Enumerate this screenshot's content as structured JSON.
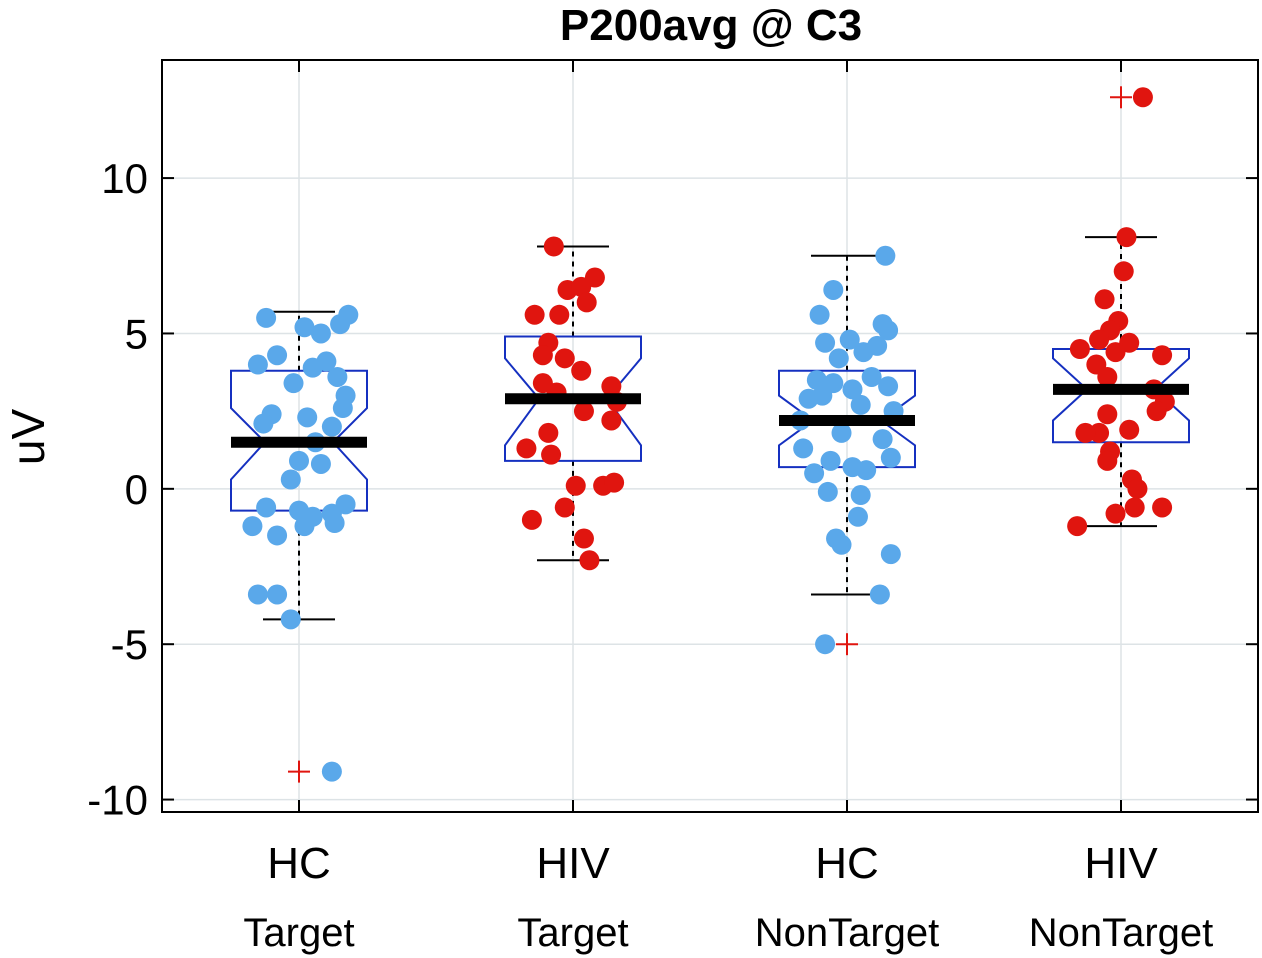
{
  "chart_data": {
    "type": "box",
    "title": "P200avg @ C3",
    "ylabel": "uV",
    "xlabel": "",
    "ylim": [
      -10.4,
      13.8
    ],
    "yticks": [
      -10,
      -5,
      0,
      5,
      10
    ],
    "ytick_labels": [
      "-10",
      "-5",
      "0",
      "5",
      "10"
    ],
    "grid": true,
    "notched": true,
    "colors": {
      "hc": "#5aa8ea",
      "hiv": "#e0150f",
      "box": "#1530c0",
      "median": "#000000",
      "outlier": "#e0150f",
      "grid": "#dde3e6"
    },
    "groups": [
      {
        "label": "HC",
        "sublabel": "Target",
        "color": "#5aa8ea",
        "q1": -0.7,
        "median": 1.5,
        "q3": 3.8,
        "notch": [
          0.3,
          2.6
        ],
        "whisker_low": -4.2,
        "whisker_high": 5.7,
        "outliers": [
          -9.1
        ],
        "points": [
          {
            "x": -0.12,
            "y": 5.5
          },
          {
            "x": 0.02,
            "y": 5.2
          },
          {
            "x": 0.08,
            "y": 5.0
          },
          {
            "x": 0.15,
            "y": 5.3
          },
          {
            "x": 0.18,
            "y": 5.6
          },
          {
            "x": -0.15,
            "y": 4.0
          },
          {
            "x": -0.08,
            "y": 4.3
          },
          {
            "x": 0.05,
            "y": 3.9
          },
          {
            "x": 0.1,
            "y": 4.1
          },
          {
            "x": 0.14,
            "y": 3.6
          },
          {
            "x": -0.02,
            "y": 3.4
          },
          {
            "x": 0.17,
            "y": 3.0
          },
          {
            "x": 0.16,
            "y": 2.6
          },
          {
            "x": -0.1,
            "y": 2.4
          },
          {
            "x": 0.03,
            "y": 2.3
          },
          {
            "x": -0.13,
            "y": 2.1
          },
          {
            "x": 0.12,
            "y": 2.0
          },
          {
            "x": 0.06,
            "y": 1.5
          },
          {
            "x": 0.0,
            "y": 0.9
          },
          {
            "x": 0.08,
            "y": 0.8
          },
          {
            "x": -0.03,
            "y": 0.3
          },
          {
            "x": -0.12,
            "y": -0.6
          },
          {
            "x": 0.0,
            "y": -0.7
          },
          {
            "x": 0.05,
            "y": -0.9
          },
          {
            "x": 0.12,
            "y": -0.8
          },
          {
            "x": 0.17,
            "y": -0.5
          },
          {
            "x": -0.17,
            "y": -1.2
          },
          {
            "x": -0.08,
            "y": -1.5
          },
          {
            "x": 0.02,
            "y": -1.2
          },
          {
            "x": 0.13,
            "y": -1.1
          },
          {
            "x": -0.15,
            "y": -3.4
          },
          {
            "x": -0.08,
            "y": -3.4
          },
          {
            "x": -0.03,
            "y": -4.2
          },
          {
            "x": 0.12,
            "y": -9.1
          }
        ]
      },
      {
        "label": "HIV",
        "sublabel": "Target",
        "color": "#e0150f",
        "q1": 0.9,
        "median": 2.9,
        "q3": 4.9,
        "notch": [
          1.4,
          4.2
        ],
        "whisker_low": -2.3,
        "whisker_high": 7.8,
        "outliers": [],
        "points": [
          {
            "x": -0.07,
            "y": 7.8
          },
          {
            "x": 0.08,
            "y": 6.8
          },
          {
            "x": -0.02,
            "y": 6.4
          },
          {
            "x": 0.03,
            "y": 6.5
          },
          {
            "x": 0.05,
            "y": 6.0
          },
          {
            "x": -0.14,
            "y": 5.6
          },
          {
            "x": -0.05,
            "y": 5.6
          },
          {
            "x": -0.09,
            "y": 4.7
          },
          {
            "x": -0.11,
            "y": 4.3
          },
          {
            "x": -0.03,
            "y": 4.2
          },
          {
            "x": 0.03,
            "y": 3.8
          },
          {
            "x": -0.11,
            "y": 3.4
          },
          {
            "x": -0.06,
            "y": 3.1
          },
          {
            "x": 0.14,
            "y": 3.3
          },
          {
            "x": 0.16,
            "y": 2.8
          },
          {
            "x": 0.04,
            "y": 2.5
          },
          {
            "x": 0.14,
            "y": 2.2
          },
          {
            "x": -0.09,
            "y": 1.8
          },
          {
            "x": -0.17,
            "y": 1.3
          },
          {
            "x": -0.08,
            "y": 1.1
          },
          {
            "x": 0.01,
            "y": 0.1
          },
          {
            "x": 0.11,
            "y": 0.1
          },
          {
            "x": 0.15,
            "y": 0.2
          },
          {
            "x": -0.03,
            "y": -0.6
          },
          {
            "x": -0.15,
            "y": -1.0
          },
          {
            "x": 0.04,
            "y": -1.6
          },
          {
            "x": 0.06,
            "y": -2.3
          }
        ]
      },
      {
        "label": "HC",
        "sublabel": "NonTarget",
        "color": "#5aa8ea",
        "q1": 0.7,
        "median": 2.2,
        "q3": 3.8,
        "notch": [
          1.4,
          3.0
        ],
        "whisker_low": -3.4,
        "whisker_high": 7.5,
        "outliers": [
          -5.0
        ],
        "points": [
          {
            "x": 0.14,
            "y": 7.5
          },
          {
            "x": -0.05,
            "y": 6.4
          },
          {
            "x": -0.1,
            "y": 5.6
          },
          {
            "x": 0.13,
            "y": 5.3
          },
          {
            "x": 0.15,
            "y": 5.1
          },
          {
            "x": 0.01,
            "y": 4.8
          },
          {
            "x": -0.08,
            "y": 4.7
          },
          {
            "x": 0.11,
            "y": 4.6
          },
          {
            "x": 0.06,
            "y": 4.4
          },
          {
            "x": -0.03,
            "y": 4.2
          },
          {
            "x": -0.11,
            "y": 3.5
          },
          {
            "x": -0.05,
            "y": 3.4
          },
          {
            "x": 0.09,
            "y": 3.6
          },
          {
            "x": 0.15,
            "y": 3.3
          },
          {
            "x": 0.02,
            "y": 3.2
          },
          {
            "x": -0.14,
            "y": 2.9
          },
          {
            "x": -0.09,
            "y": 3.0
          },
          {
            "x": 0.05,
            "y": 2.7
          },
          {
            "x": 0.17,
            "y": 2.5
          },
          {
            "x": -0.17,
            "y": 2.2
          },
          {
            "x": -0.02,
            "y": 1.8
          },
          {
            "x": 0.13,
            "y": 1.6
          },
          {
            "x": -0.16,
            "y": 1.3
          },
          {
            "x": 0.16,
            "y": 1.0
          },
          {
            "x": -0.06,
            "y": 0.9
          },
          {
            "x": 0.02,
            "y": 0.7
          },
          {
            "x": -0.12,
            "y": 0.5
          },
          {
            "x": 0.07,
            "y": 0.6
          },
          {
            "x": -0.07,
            "y": -0.1
          },
          {
            "x": 0.05,
            "y": -0.2
          },
          {
            "x": 0.04,
            "y": -0.9
          },
          {
            "x": -0.04,
            "y": -1.6
          },
          {
            "x": -0.02,
            "y": -1.8
          },
          {
            "x": 0.16,
            "y": -2.1
          },
          {
            "x": 0.12,
            "y": -3.4
          },
          {
            "x": -0.08,
            "y": -5.0
          }
        ]
      },
      {
        "label": "HIV",
        "sublabel": "NonTarget",
        "color": "#e0150f",
        "q1": 1.5,
        "median": 3.2,
        "q3": 4.5,
        "notch": [
          2.2,
          4.2
        ],
        "whisker_low": -1.2,
        "whisker_high": 8.1,
        "outliers": [
          12.6
        ],
        "points": [
          {
            "x": 0.08,
            "y": 12.6
          },
          {
            "x": 0.02,
            "y": 8.1
          },
          {
            "x": 0.01,
            "y": 7.0
          },
          {
            "x": -0.06,
            "y": 6.1
          },
          {
            "x": -0.01,
            "y": 5.4
          },
          {
            "x": -0.04,
            "y": 5.1
          },
          {
            "x": -0.08,
            "y": 4.8
          },
          {
            "x": -0.15,
            "y": 4.5
          },
          {
            "x": -0.02,
            "y": 4.4
          },
          {
            "x": 0.03,
            "y": 4.7
          },
          {
            "x": 0.15,
            "y": 4.3
          },
          {
            "x": -0.09,
            "y": 4.0
          },
          {
            "x": -0.05,
            "y": 3.6
          },
          {
            "x": 0.12,
            "y": 3.2
          },
          {
            "x": 0.16,
            "y": 2.8
          },
          {
            "x": 0.13,
            "y": 2.5
          },
          {
            "x": -0.05,
            "y": 2.4
          },
          {
            "x": -0.08,
            "y": 1.8
          },
          {
            "x": 0.03,
            "y": 1.9
          },
          {
            "x": -0.13,
            "y": 1.8
          },
          {
            "x": -0.04,
            "y": 1.2
          },
          {
            "x": -0.05,
            "y": 0.9
          },
          {
            "x": 0.04,
            "y": 0.3
          },
          {
            "x": 0.06,
            "y": 0.0
          },
          {
            "x": -0.02,
            "y": -0.8
          },
          {
            "x": 0.05,
            "y": -0.6
          },
          {
            "x": 0.15,
            "y": -0.6
          },
          {
            "x": -0.16,
            "y": -1.2
          }
        ]
      }
    ]
  }
}
